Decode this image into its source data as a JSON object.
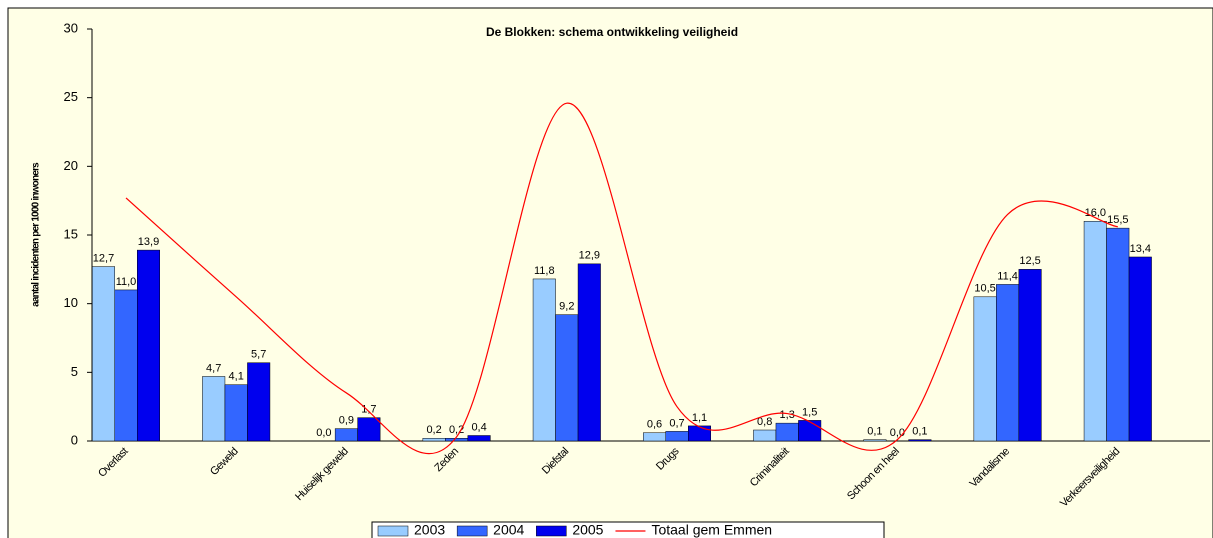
{
  "chart_data": {
    "type": "bar",
    "title": "De Blokken: schema ontwikkeling veiligheid",
    "y_label": "aantal incidenten per 1000 inwoners",
    "categories": [
      "Overlast",
      "Geweld",
      "Huiselijk geweld",
      "Zeden",
      "Diefstal",
      "Drugs",
      "Criminaliteit",
      "Schoon en heel",
      "Vandalisme",
      "Verkeersveiligheid"
    ],
    "series": [
      {
        "name": "2003",
        "color": "#99ccff",
        "values": [
          12.7,
          4.7,
          0.0,
          0.2,
          11.8,
          0.6,
          0.8,
          0.1,
          10.5,
          16.0
        ],
        "value_labels": [
          "12,7",
          "4,7",
          "0,0",
          "0,2",
          "11,8",
          "0,6",
          "0,8",
          "0,1",
          "10,5",
          "16,0"
        ]
      },
      {
        "name": "2004",
        "color": "#3366ff",
        "values": [
          11.0,
          4.1,
          0.9,
          0.2,
          9.2,
          0.7,
          1.3,
          0.0,
          11.4,
          15.5
        ],
        "value_labels": [
          "11,0",
          "4,1",
          "0,9",
          "0,2",
          "9,2",
          "0,7",
          "1,3",
          "0,0",
          "11,4",
          "15,5"
        ]
      },
      {
        "name": "2005",
        "color": "#0000ee",
        "values": [
          13.9,
          5.7,
          1.7,
          0.4,
          12.9,
          1.1,
          1.5,
          0.1,
          12.5,
          13.4
        ],
        "value_labels": [
          "13,9",
          "5,7",
          "1,7",
          "0,4",
          "12,9",
          "1,1",
          "1,5",
          "0,1",
          "12,5",
          "13,4"
        ]
      },
      {
        "name": "Totaal gem Emmen",
        "type": "line",
        "color": "#ff0000",
        "values": [
          17.7,
          10.5,
          3.5,
          0.3,
          24.6,
          2.5,
          2.0,
          0.1,
          16.5,
          15.6
        ]
      }
    ],
    "ylim": [
      0,
      30
    ],
    "yticks": [
      0,
      5,
      10,
      15,
      20,
      25,
      30
    ],
    "grid": false,
    "legend": "bottom"
  }
}
